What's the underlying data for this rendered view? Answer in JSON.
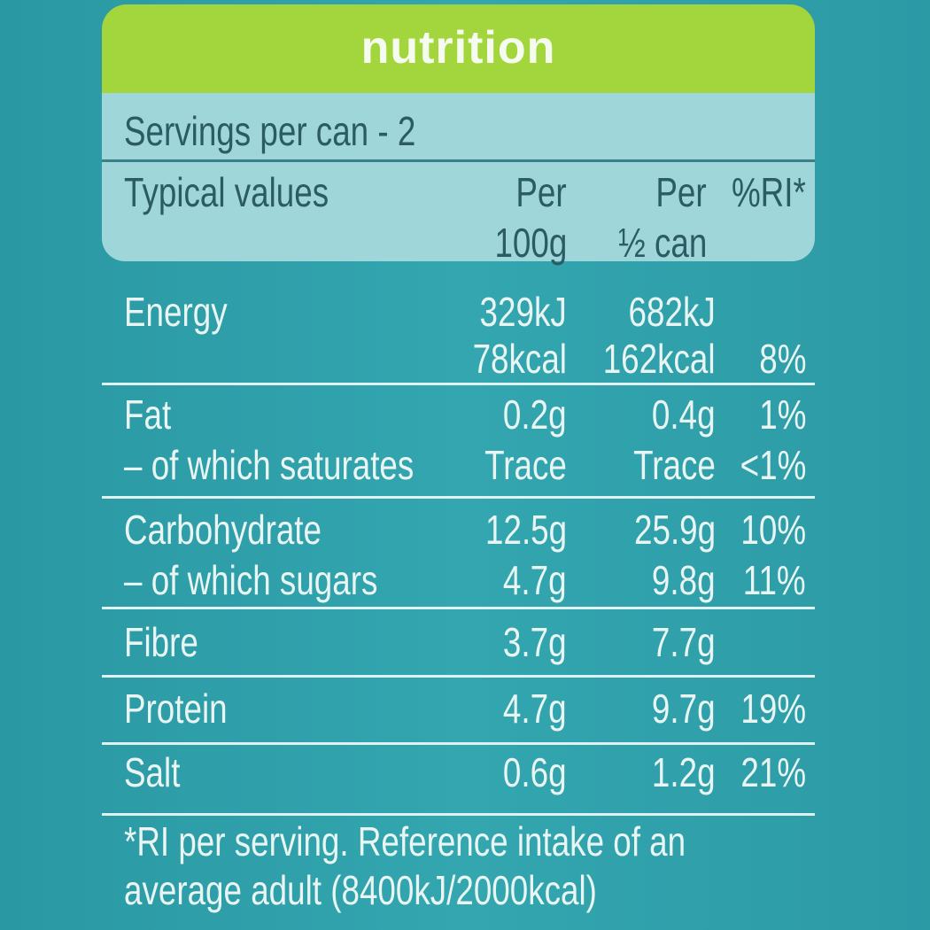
{
  "title": "nutrition",
  "servings": "Servings per can - 2",
  "header": {
    "label": "Typical values",
    "per100g": [
      "Per",
      "100g"
    ],
    "perHalf": [
      "Per",
      "½ can"
    ],
    "ri": "%RI*"
  },
  "groups": [
    [
      {
        "label": "Energy",
        "per100g": "329kJ",
        "perHalf": "682kJ"
      },
      {
        "per100g": "78kcal",
        "perHalf": "162kcal",
        "ri": "8%"
      }
    ],
    [
      {
        "label": "Fat",
        "per100g": "0.2g",
        "perHalf": "0.4g",
        "ri": "1%"
      },
      {
        "label": "– of which saturates",
        "per100g": "Trace",
        "perHalf": "Trace",
        "ri": "<1%"
      }
    ],
    [
      {
        "label": "Carbohydrate",
        "per100g": "12.5g",
        "perHalf": "25.9g",
        "ri": "10%"
      },
      {
        "label": "– of which sugars",
        "per100g": "4.7g",
        "perHalf": "9.8g",
        "ri": "11%"
      }
    ],
    [
      {
        "label": "Fibre",
        "per100g": "3.7g",
        "perHalf": "7.7g"
      }
    ],
    [
      {
        "label": "Protein",
        "per100g": "4.7g",
        "perHalf": "9.7g",
        "ri": "19%"
      }
    ],
    [
      {
        "label": "Salt",
        "per100g": "0.6g",
        "perHalf": "1.2g",
        "ri": "21%"
      }
    ]
  ],
  "footnote": [
    "*RI per serving. Reference intake of an",
    "average adult (8400kJ/2000kcal)"
  ]
}
